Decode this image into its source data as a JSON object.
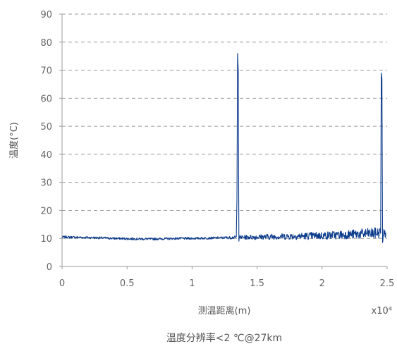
{
  "chart_data": {
    "type": "line",
    "title": "",
    "caption": "温度分辨率<2 ℃@27km",
    "xlabel": "测温距离(m)",
    "x_multiplier": "x10⁴",
    "ylabel": "温度(°C)",
    "xlim": [
      0,
      2.5
    ],
    "ylim": [
      0,
      90
    ],
    "x_ticks": [
      "0",
      "0.5",
      "1",
      "1.5",
      "2",
      "2.5"
    ],
    "y_ticks": [
      "0",
      "10",
      "20",
      "30",
      "40",
      "50",
      "60",
      "70",
      "80",
      "90"
    ],
    "grid": "horizontal-dashed",
    "series": [
      {
        "color": "#0d3c8c",
        "x": [
          0,
          0.1,
          0.2,
          0.3,
          0.4,
          0.5,
          0.6,
          0.7,
          0.8,
          0.9,
          1.0,
          1.1,
          1.2,
          1.3,
          1.34,
          1.345,
          1.35,
          1.355,
          1.36,
          1.365,
          1.37,
          1.4,
          1.5,
          1.6,
          1.7,
          1.8,
          1.9,
          2.0,
          2.1,
          2.2,
          2.3,
          2.4,
          2.45,
          2.455,
          2.46,
          2.465,
          2.47,
          2.48,
          2.49
        ],
        "y": [
          10.5,
          10.4,
          10.3,
          10.2,
          10.0,
          9.9,
          9.8,
          9.8,
          9.9,
          10.0,
          10.0,
          10.1,
          10.2,
          10.3,
          10.4,
          24,
          76,
          70,
          9.0,
          10.5,
          10.4,
          10.4,
          10.5,
          10.6,
          10.7,
          10.8,
          10.9,
          11.0,
          11.2,
          11.4,
          11.6,
          11.8,
          12.0,
          69,
          67,
          8.5,
          11.5,
          11.8,
          12.0
        ],
        "noise_amplitude": [
          0.4,
          0.4,
          0.4,
          0.4,
          0.4,
          0.4,
          0.4,
          0.4,
          0.4,
          0.4,
          0.4,
          0.4,
          0.4,
          0.5,
          0.5,
          0,
          0,
          0,
          0,
          0.7,
          0.7,
          0.8,
          0.9,
          1.0,
          1.1,
          1.2,
          1.3,
          1.4,
          1.5,
          1.6,
          1.8,
          2.0,
          2.0,
          0,
          0,
          0,
          2.0,
          2.0,
          2.0
        ]
      }
    ]
  }
}
